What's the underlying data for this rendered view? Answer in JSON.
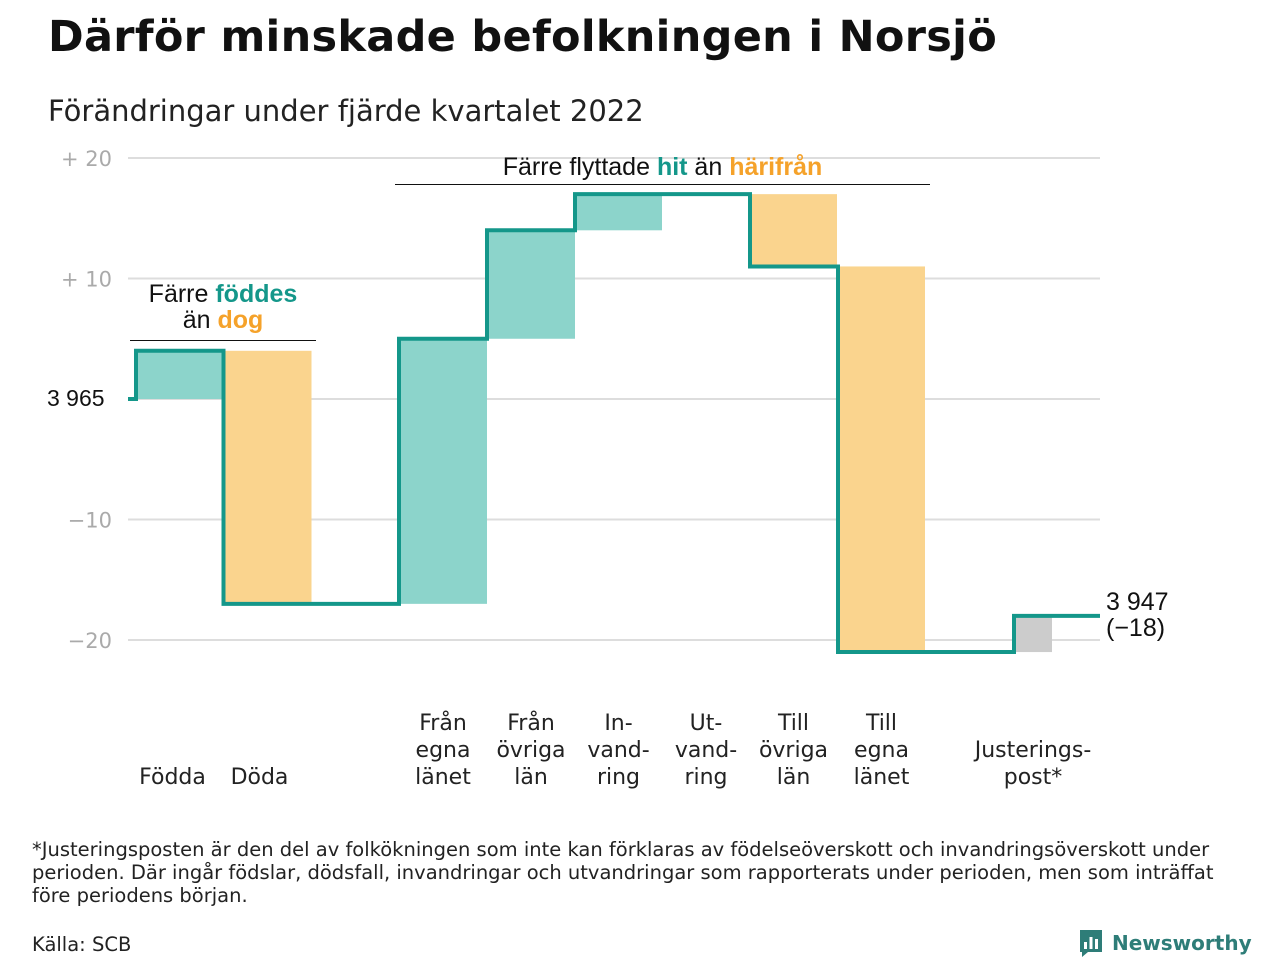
{
  "title": "Därför minskade befolkningen i Norsjö",
  "subtitle": "Förändringar under fjärde kvartalet 2022",
  "colors": {
    "increase": "#8cd4cb",
    "decrease": "#fad48e",
    "adjustment": "#cccccc",
    "line": "#14978a",
    "grid": "#dddddd",
    "annotation_increase": "#14978a",
    "annotation_decrease": "#f5a22a"
  },
  "annotations": {
    "births": {
      "line1_prefix": "Färre ",
      "line1_em": "föddes",
      "line2_prefix": "än ",
      "line2_em": "dog"
    },
    "moves": {
      "prefix": "Färre flyttade ",
      "em1": "hit",
      "middle": " än ",
      "em2": "härifrån"
    }
  },
  "start_label": "3 965",
  "end_label": {
    "line1": "3 947",
    "line2": "(−18)"
  },
  "footnote": "*Justeringsposten är den del av folkökningen som inte kan förklaras av födelseöverskott och invandringsöverskott under perioden. Där ingår födslar, dödsfall, invandringar och utvandringar som rapporterats under perioden, men som inträffat före periodens början.",
  "source": "Källa: SCB",
  "brand": "Newsworthy",
  "chart_data": {
    "type": "waterfall",
    "start_value": 3965,
    "end_value": 3947,
    "net_change": -18,
    "yaxis": {
      "ticks": [
        20,
        10,
        0,
        -10,
        -20
      ],
      "tick_labels": [
        "+ 20",
        "+ 10",
        "3 965",
        "−10",
        "−20"
      ],
      "ylim": [
        -22,
        21
      ]
    },
    "grid": true,
    "steps": [
      {
        "label": [
          "Födda"
        ],
        "change": 4,
        "kind": "increase"
      },
      {
        "label": [
          "Döda"
        ],
        "change": -21,
        "kind": "decrease"
      },
      {
        "label": [
          "Från",
          "egna",
          "länet"
        ],
        "change": 22,
        "kind": "increase"
      },
      {
        "label": [
          "Från",
          "övriga",
          "län"
        ],
        "change": 9,
        "kind": "increase"
      },
      {
        "label": [
          "In-",
          "vand-",
          "ring"
        ],
        "change": 3,
        "kind": "increase"
      },
      {
        "label": [
          "Ut-",
          "vand-",
          "ring"
        ],
        "change": 0,
        "kind": "decrease"
      },
      {
        "label": [
          "Till",
          "övriga",
          "län"
        ],
        "change": -6,
        "kind": "decrease"
      },
      {
        "label": [
          "Till",
          "egna",
          "länet"
        ],
        "change": -32,
        "kind": "decrease"
      },
      {
        "label": [
          "Justerings-",
          "post*"
        ],
        "change": 3,
        "kind": "adjustment"
      }
    ]
  }
}
